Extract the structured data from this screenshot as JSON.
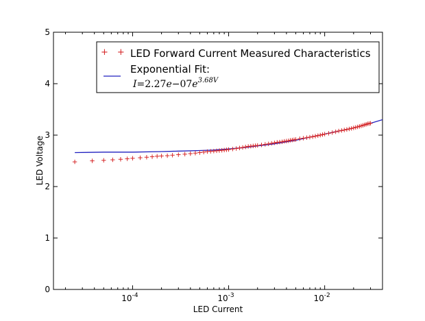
{
  "chart_data": {
    "type": "scatter",
    "title": "",
    "xlabel": "LED Current",
    "ylabel": "LED Voltage",
    "xscale": "log",
    "xlim": [
      1.5e-05,
      0.04
    ],
    "ylim": [
      0,
      5
    ],
    "xticks": [
      {
        "value": 0.0001,
        "base": "10",
        "exp": "-4"
      },
      {
        "value": 0.001,
        "base": "10",
        "exp": "-3"
      },
      {
        "value": 0.01,
        "base": "10",
        "exp": "-2"
      }
    ],
    "yticks": [
      0,
      1,
      2,
      3,
      4,
      5
    ],
    "grid": false,
    "legend_position": "top-right",
    "series": [
      {
        "name": "LED Forward Current Measured Characteristics",
        "kind": "scatter",
        "marker": "+",
        "color": "#d62728",
        "points": [
          [
            2.5e-05,
            2.48
          ],
          [
            3.8e-05,
            2.5
          ],
          [
            5e-05,
            2.51
          ],
          [
            6.2e-05,
            2.52
          ],
          [
            7.5e-05,
            2.53
          ],
          [
            8.8e-05,
            2.54
          ],
          [
            0.0001,
            2.55
          ],
          [
            0.00012,
            2.56
          ],
          [
            0.00014,
            2.57
          ],
          [
            0.00016,
            2.58
          ],
          [
            0.00018,
            2.59
          ],
          [
            0.0002,
            2.595
          ],
          [
            0.00023,
            2.6
          ],
          [
            0.00026,
            2.61
          ],
          [
            0.0003,
            2.62
          ],
          [
            0.00035,
            2.63
          ],
          [
            0.0004,
            2.64
          ],
          [
            0.00045,
            2.65
          ],
          [
            0.0005,
            2.66
          ],
          [
            0.00055,
            2.67
          ],
          [
            0.0006,
            2.68
          ],
          [
            0.00065,
            2.685
          ],
          [
            0.0007,
            2.69
          ],
          [
            0.00075,
            2.695
          ],
          [
            0.0008,
            2.7
          ],
          [
            0.00085,
            2.705
          ],
          [
            0.0009,
            2.71
          ],
          [
            0.00095,
            2.715
          ],
          [
            0.001,
            2.72
          ],
          [
            0.0011,
            2.73
          ],
          [
            0.0012,
            2.74
          ],
          [
            0.0013,
            2.75
          ],
          [
            0.0014,
            2.76
          ],
          [
            0.0015,
            2.77
          ],
          [
            0.0016,
            2.78
          ],
          [
            0.0017,
            2.785
          ],
          [
            0.0018,
            2.79
          ],
          [
            0.0019,
            2.795
          ],
          [
            0.002,
            2.8
          ],
          [
            0.0022,
            2.81
          ],
          [
            0.0024,
            2.82
          ],
          [
            0.0026,
            2.83
          ],
          [
            0.0028,
            2.84
          ],
          [
            0.003,
            2.85
          ],
          [
            0.0032,
            2.86
          ],
          [
            0.0034,
            2.865
          ],
          [
            0.0036,
            2.87
          ],
          [
            0.0038,
            2.88
          ],
          [
            0.004,
            2.885
          ],
          [
            0.0042,
            2.89
          ],
          [
            0.0044,
            2.9
          ],
          [
            0.0046,
            2.905
          ],
          [
            0.0048,
            2.91
          ],
          [
            0.005,
            2.915
          ],
          [
            0.0055,
            2.93
          ],
          [
            0.006,
            2.94
          ],
          [
            0.0065,
            2.95
          ],
          [
            0.007,
            2.96
          ],
          [
            0.0075,
            2.97
          ],
          [
            0.008,
            2.98
          ],
          [
            0.0085,
            2.99
          ],
          [
            0.009,
            3.0
          ],
          [
            0.0095,
            3.01
          ],
          [
            0.01,
            3.02
          ],
          [
            0.011,
            3.035
          ],
          [
            0.012,
            3.05
          ],
          [
            0.013,
            3.065
          ],
          [
            0.014,
            3.08
          ],
          [
            0.015,
            3.09
          ],
          [
            0.016,
            3.1
          ],
          [
            0.017,
            3.11
          ],
          [
            0.018,
            3.12
          ],
          [
            0.019,
            3.13
          ],
          [
            0.02,
            3.14
          ],
          [
            0.021,
            3.15
          ],
          [
            0.022,
            3.16
          ],
          [
            0.023,
            3.17
          ],
          [
            0.024,
            3.18
          ],
          [
            0.025,
            3.19
          ],
          [
            0.026,
            3.2
          ],
          [
            0.027,
            3.21
          ],
          [
            0.028,
            3.22
          ],
          [
            0.029,
            3.225
          ],
          [
            0.03,
            3.23
          ]
        ]
      },
      {
        "name": "Exponential Fit:",
        "kind": "line",
        "color": "#1f1fbf",
        "formula": "I = 2.27e−07e^(3.68V)",
        "points": [
          [
            2.5e-05,
            2.66
          ],
          [
            5e-05,
            2.67
          ],
          [
            0.0001,
            2.67
          ],
          [
            0.0002,
            2.68
          ],
          [
            0.0003,
            2.69
          ],
          [
            0.0005,
            2.7
          ],
          [
            0.0007,
            2.71
          ],
          [
            0.001,
            2.73
          ],
          [
            0.0015,
            2.76
          ],
          [
            0.002,
            2.79
          ],
          [
            0.003,
            2.83
          ],
          [
            0.005,
            2.9
          ],
          [
            0.007,
            2.96
          ],
          [
            0.01,
            3.02
          ],
          [
            0.015,
            3.09
          ],
          [
            0.02,
            3.14
          ],
          [
            0.03,
            3.23
          ],
          [
            0.04,
            3.3
          ]
        ]
      }
    ],
    "legend": {
      "entries": [
        {
          "label": "LED Forward Current Measured Characteristics"
        },
        {
          "label": "Exponential Fit:"
        }
      ],
      "formula": {
        "lhs": "I",
        "eq": "=",
        "coef": "2.27",
        "e1": "e",
        "minus": "−",
        "exp1": "07",
        "e2": "e",
        "sup": "3.68V"
      }
    }
  },
  "colors": {
    "scatter": "#d62728",
    "fit": "#1f1fbf",
    "axis": "#000000"
  }
}
